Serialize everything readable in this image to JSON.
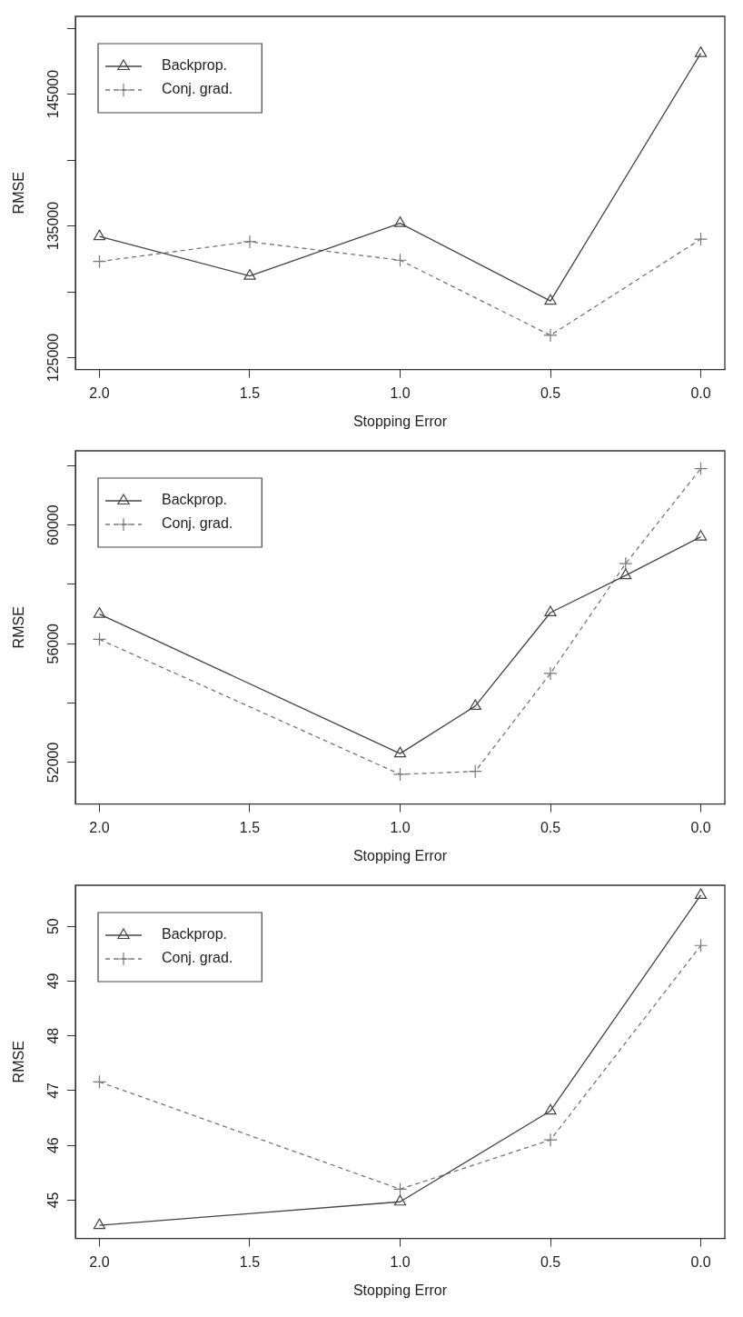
{
  "chart_data": [
    {
      "type": "line",
      "xlabel": "Stopping Error",
      "ylabel": "RMSE",
      "x": [
        2,
        1.5,
        1,
        0.5,
        0
      ],
      "xlim": [
        2.08,
        -0.08
      ],
      "xticks": [
        {
          "value": 2,
          "label": "2.0"
        },
        {
          "value": 1.5,
          "label": "1.5"
        },
        {
          "value": 1,
          "label": "1.0"
        },
        {
          "value": 0.5,
          "label": "0.5"
        },
        {
          "value": 0,
          "label": "0.0"
        }
      ],
      "ylim": [
        124100,
        150900
      ],
      "yticks": [
        125000,
        {
          "value": 130000,
          "label": null
        },
        135000,
        {
          "value": 140000,
          "label": null
        },
        145000,
        {
          "value": 150000,
          "label": null
        }
      ],
      "grid": false,
      "legend": "top left",
      "series": [
        {
          "name": "Backprop.",
          "color": "#444444",
          "marker": "triangle",
          "line_style": "solid",
          "values": [
            134200,
            131200,
            135200,
            129300,
            148100
          ]
        },
        {
          "name": "Conj. grad.",
          "color": "#777777",
          "marker": "cross",
          "line_style": "dashed",
          "values": [
            132300,
            133800,
            132400,
            126700,
            134000
          ]
        }
      ]
    },
    {
      "type": "line",
      "xlabel": "Stopping Error",
      "ylabel": "RMSE",
      "x": [
        2,
        1,
        0.75,
        0.5,
        0.25,
        0
      ],
      "xlim": [
        2.08,
        -0.08
      ],
      "xticks": [
        {
          "value": 2,
          "label": "2.0"
        },
        {
          "value": 1.5,
          "label": "1.5"
        },
        {
          "value": 1,
          "label": "1.0"
        },
        {
          "value": 0.5,
          "label": "0.5"
        },
        {
          "value": 0,
          "label": "0.0"
        }
      ],
      "ylim": [
        50600,
        62500
      ],
      "yticks": [
        52000,
        {
          "value": 54000,
          "label": null
        },
        56000,
        {
          "value": 58000,
          "label": null
        },
        60000,
        {
          "value": 62000,
          "label": null
        }
      ],
      "grid": false,
      "legend": "top left",
      "series": [
        {
          "name": "Backprop.",
          "color": "#444444",
          "marker": "triangle",
          "line_style": "solid",
          "values": [
            57000,
            52300,
            53900,
            57050,
            58300,
            59600
          ]
        },
        {
          "name": "Conj. grad.",
          "color": "#777777",
          "marker": "cross",
          "line_style": "dashed",
          "values": [
            56150,
            51600,
            51700,
            55000,
            58700,
            61900
          ]
        }
      ]
    },
    {
      "type": "line",
      "xlabel": "Stopping Error",
      "ylabel": "RMSE",
      "x": [
        2,
        1,
        0.5,
        0
      ],
      "xlim": [
        2.08,
        -0.08
      ],
      "xticks": [
        {
          "value": 2,
          "label": "2.0"
        },
        {
          "value": 1.5,
          "label": "1.5"
        },
        {
          "value": 1,
          "label": "1.0"
        },
        {
          "value": 0.5,
          "label": "0.5"
        },
        {
          "value": 0,
          "label": "0.0"
        }
      ],
      "ylim": [
        44.3,
        50.75
      ],
      "yticks": [
        45,
        46,
        47,
        48,
        49,
        50
      ],
      "grid": false,
      "legend": "top left",
      "series": [
        {
          "name": "Backprop.",
          "color": "#444444",
          "marker": "triangle",
          "line_style": "solid",
          "values": [
            44.54,
            44.97,
            46.63,
            50.57
          ]
        },
        {
          "name": "Conj. grad.",
          "color": "#777777",
          "marker": "cross",
          "line_style": "dashed",
          "values": [
            47.16,
            45.2,
            46.1,
            49.65
          ]
        }
      ]
    }
  ]
}
